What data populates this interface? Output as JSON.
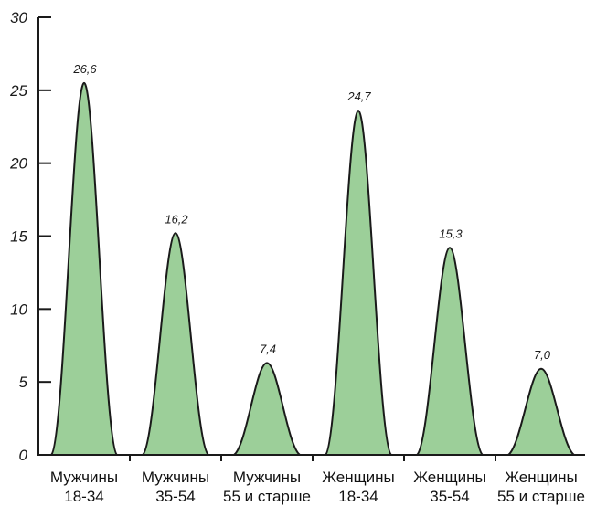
{
  "chart_data": {
    "type": "area",
    "categories": [
      [
        "Мужчины",
        "18-34"
      ],
      [
        "Мужчины",
        "35-54"
      ],
      [
        "Мужчины",
        "55 и старше"
      ],
      [
        "Женщины",
        "18-34"
      ],
      [
        "Женщины",
        "35-54"
      ],
      [
        "Женщины",
        "55 и старше"
      ]
    ],
    "values": [
      26.6,
      16.2,
      7.4,
      24.7,
      15.3,
      7.0
    ],
    "peak_heights": [
      25.5,
      15.2,
      6.3,
      23.6,
      14.2,
      5.9
    ],
    "data_labels": [
      "26,6",
      "16,2",
      "7,4",
      "24,7",
      "15,3",
      "7,0"
    ],
    "y_ticks": [
      "0",
      "5",
      "10",
      "15",
      "20",
      "25",
      "30"
    ],
    "ylim": [
      0,
      30
    ],
    "title": "",
    "xlabel": "",
    "ylabel": "",
    "grid": false,
    "colors": {
      "fill": "#9ccf99",
      "stroke": "#1a1a1a",
      "axis": "#1a1a1a"
    }
  }
}
